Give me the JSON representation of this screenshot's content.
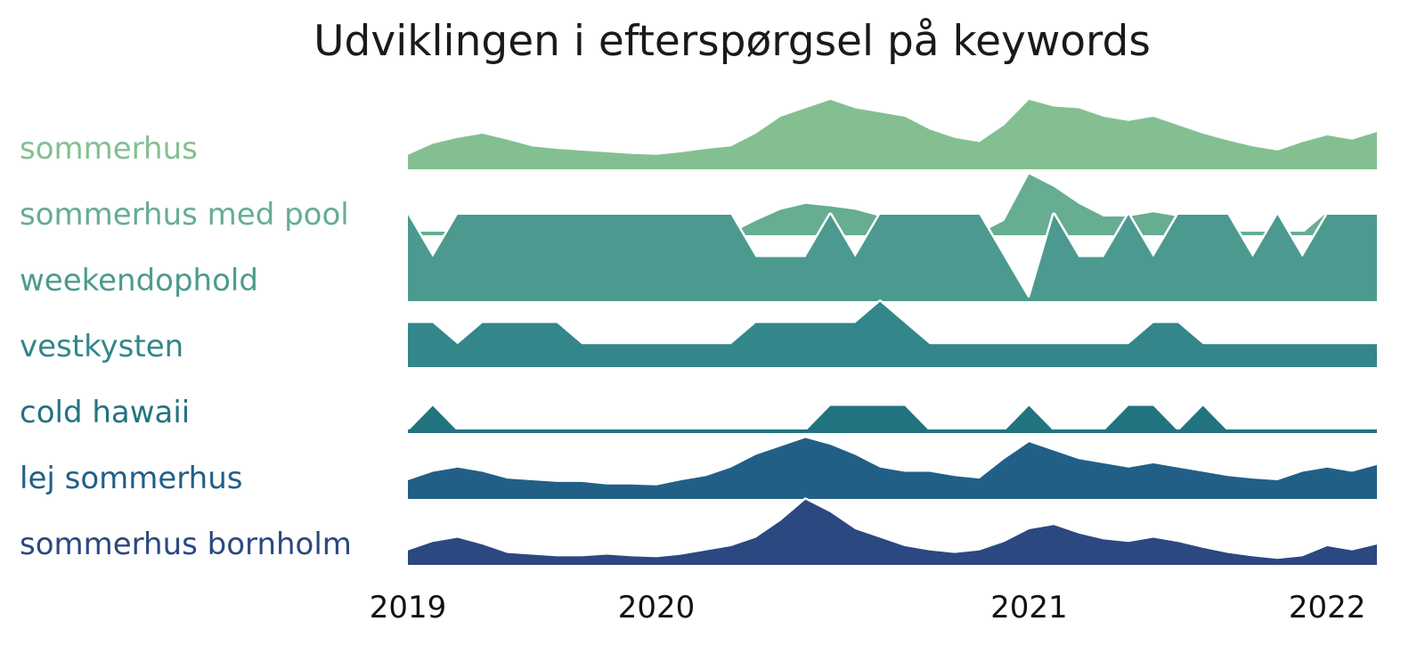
{
  "chart_data": {
    "type": "area",
    "subtype": "ridgeline",
    "title": "Udviklingen i efterspørgsel på keywords",
    "xlabel": "",
    "ylabel": "",
    "x_start": "2019-01",
    "x_end": "2022-04",
    "x_ticks": [
      {
        "label": "2019",
        "date": "2019-01"
      },
      {
        "label": "2020",
        "date": "2019-11"
      },
      {
        "label": "2021",
        "date": "2021-02"
      },
      {
        "label": "2022",
        "date": "2022-02"
      }
    ],
    "ylim": [
      0,
      100
    ],
    "grid": false,
    "legend": "none",
    "series": [
      {
        "name": "sommerhus",
        "color": "#84bf91",
        "points": [
          [
            "2019-01",
            15
          ],
          [
            "2019-02",
            28
          ],
          [
            "2019-03",
            35
          ],
          [
            "2019-04",
            40
          ],
          [
            "2019-05",
            33
          ],
          [
            "2019-06",
            25
          ],
          [
            "2019-07",
            22
          ],
          [
            "2019-08",
            20
          ],
          [
            "2019-09",
            18
          ],
          [
            "2019-10",
            16
          ],
          [
            "2019-11",
            15
          ],
          [
            "2019-12",
            18
          ],
          [
            "2020-01",
            22
          ],
          [
            "2020-02",
            25
          ],
          [
            "2020-03",
            40
          ],
          [
            "2020-04",
            60
          ],
          [
            "2020-05",
            70
          ],
          [
            "2020-06",
            80
          ],
          [
            "2020-07",
            70
          ],
          [
            "2020-08",
            65
          ],
          [
            "2020-09",
            60
          ],
          [
            "2020-10",
            45
          ],
          [
            "2020-11",
            35
          ],
          [
            "2020-12",
            30
          ],
          [
            "2021-01",
            50
          ],
          [
            "2021-02",
            80
          ],
          [
            "2021-03",
            72
          ],
          [
            "2021-04",
            70
          ],
          [
            "2021-05",
            60
          ],
          [
            "2021-06",
            55
          ],
          [
            "2021-07",
            60
          ],
          [
            "2021-08",
            50
          ],
          [
            "2021-09",
            40
          ],
          [
            "2021-10",
            32
          ],
          [
            "2021-11",
            25
          ],
          [
            "2021-12",
            20
          ],
          [
            "2022-01",
            30
          ],
          [
            "2022-02",
            38
          ],
          [
            "2022-03",
            33
          ],
          [
            "2022-04",
            42
          ]
        ]
      },
      {
        "name": "sommerhus med pool",
        "color": "#66ad91",
        "points": [
          [
            "2019-01",
            0
          ],
          [
            "2019-02",
            2
          ],
          [
            "2019-03",
            0
          ],
          [
            "2019-04",
            3
          ],
          [
            "2019-05",
            0
          ],
          [
            "2019-06",
            2
          ],
          [
            "2019-07",
            0
          ],
          [
            "2019-08",
            0
          ],
          [
            "2019-09",
            0
          ],
          [
            "2019-10",
            0
          ],
          [
            "2019-11",
            0
          ],
          [
            "2019-12",
            0
          ],
          [
            "2020-01",
            0
          ],
          [
            "2020-02",
            0
          ],
          [
            "2020-03",
            15
          ],
          [
            "2020-04",
            28
          ],
          [
            "2020-05",
            35
          ],
          [
            "2020-06",
            32
          ],
          [
            "2020-07",
            28
          ],
          [
            "2020-08",
            20
          ],
          [
            "2020-09",
            0
          ],
          [
            "2020-10",
            0
          ],
          [
            "2020-11",
            0
          ],
          [
            "2020-12",
            0
          ],
          [
            "2021-01",
            15
          ],
          [
            "2021-02",
            70
          ],
          [
            "2021-03",
            55
          ],
          [
            "2021-04",
            35
          ],
          [
            "2021-05",
            20
          ],
          [
            "2021-06",
            20
          ],
          [
            "2021-07",
            25
          ],
          [
            "2021-08",
            20
          ],
          [
            "2021-09",
            0
          ],
          [
            "2021-10",
            0
          ],
          [
            "2021-11",
            0
          ],
          [
            "2021-12",
            0
          ],
          [
            "2022-01",
            0
          ],
          [
            "2022-02",
            25
          ],
          [
            "2022-03",
            20
          ],
          [
            "2022-04",
            0
          ]
        ]
      },
      {
        "name": "weekendophold",
        "color": "#4c9a8f",
        "points": [
          [
            "2019-01",
            100
          ],
          [
            "2019-02",
            50
          ],
          [
            "2019-03",
            100
          ],
          [
            "2019-04",
            100
          ],
          [
            "2019-05",
            100
          ],
          [
            "2019-06",
            100
          ],
          [
            "2019-07",
            100
          ],
          [
            "2019-08",
            100
          ],
          [
            "2019-09",
            100
          ],
          [
            "2019-10",
            100
          ],
          [
            "2019-11",
            100
          ],
          [
            "2019-12",
            100
          ],
          [
            "2020-01",
            100
          ],
          [
            "2020-02",
            100
          ],
          [
            "2020-03",
            50
          ],
          [
            "2020-04",
            50
          ],
          [
            "2020-05",
            50
          ],
          [
            "2020-06",
            100
          ],
          [
            "2020-07",
            50
          ],
          [
            "2020-08",
            100
          ],
          [
            "2020-09",
            100
          ],
          [
            "2020-10",
            100
          ],
          [
            "2020-11",
            100
          ],
          [
            "2020-12",
            100
          ],
          [
            "2021-01",
            50
          ],
          [
            "2021-02",
            0
          ],
          [
            "2021-03",
            100
          ],
          [
            "2021-04",
            50
          ],
          [
            "2021-05",
            50
          ],
          [
            "2021-06",
            100
          ],
          [
            "2021-07",
            50
          ],
          [
            "2021-08",
            100
          ],
          [
            "2021-09",
            100
          ],
          [
            "2021-10",
            100
          ],
          [
            "2021-11",
            50
          ],
          [
            "2021-12",
            100
          ],
          [
            "2022-01",
            50
          ],
          [
            "2022-02",
            100
          ],
          [
            "2022-03",
            100
          ],
          [
            "2022-04",
            100
          ]
        ]
      },
      {
        "name": "vestkysten",
        "color": "#33868a",
        "points": [
          [
            "2019-01",
            50
          ],
          [
            "2019-02",
            50
          ],
          [
            "2019-03",
            25
          ],
          [
            "2019-04",
            50
          ],
          [
            "2019-05",
            50
          ],
          [
            "2019-06",
            50
          ],
          [
            "2019-07",
            50
          ],
          [
            "2019-08",
            25
          ],
          [
            "2019-09",
            25
          ],
          [
            "2019-10",
            25
          ],
          [
            "2019-11",
            25
          ],
          [
            "2019-12",
            25
          ],
          [
            "2020-01",
            25
          ],
          [
            "2020-02",
            25
          ],
          [
            "2020-03",
            50
          ],
          [
            "2020-04",
            50
          ],
          [
            "2020-05",
            50
          ],
          [
            "2020-06",
            50
          ],
          [
            "2020-07",
            50
          ],
          [
            "2020-08",
            75
          ],
          [
            "2020-09",
            50
          ],
          [
            "2020-10",
            25
          ],
          [
            "2020-11",
            25
          ],
          [
            "2020-12",
            25
          ],
          [
            "2021-01",
            25
          ],
          [
            "2021-02",
            25
          ],
          [
            "2021-03",
            25
          ],
          [
            "2021-04",
            25
          ],
          [
            "2021-05",
            25
          ],
          [
            "2021-06",
            25
          ],
          [
            "2021-07",
            50
          ],
          [
            "2021-08",
            50
          ],
          [
            "2021-09",
            25
          ],
          [
            "2021-10",
            25
          ],
          [
            "2021-11",
            25
          ],
          [
            "2021-12",
            25
          ],
          [
            "2022-01",
            25
          ],
          [
            "2022-02",
            25
          ],
          [
            "2022-03",
            25
          ],
          [
            "2022-04",
            25
          ]
        ]
      },
      {
        "name": "cold hawaii",
        "color": "#227380",
        "points": [
          [
            "2019-01",
            0
          ],
          [
            "2019-02",
            30
          ],
          [
            "2019-03",
            0
          ],
          [
            "2019-04",
            0
          ],
          [
            "2019-05",
            0
          ],
          [
            "2019-06",
            0
          ],
          [
            "2019-07",
            0
          ],
          [
            "2019-08",
            0
          ],
          [
            "2019-09",
            0
          ],
          [
            "2019-10",
            0
          ],
          [
            "2019-11",
            0
          ],
          [
            "2019-12",
            0
          ],
          [
            "2020-01",
            0
          ],
          [
            "2020-02",
            0
          ],
          [
            "2020-03",
            0
          ],
          [
            "2020-04",
            0
          ],
          [
            "2020-05",
            0
          ],
          [
            "2020-06",
            30
          ],
          [
            "2020-07",
            30
          ],
          [
            "2020-08",
            30
          ],
          [
            "2020-09",
            30
          ],
          [
            "2020-10",
            0
          ],
          [
            "2020-11",
            0
          ],
          [
            "2020-12",
            0
          ],
          [
            "2021-01",
            0
          ],
          [
            "2021-02",
            30
          ],
          [
            "2021-03",
            0
          ],
          [
            "2021-04",
            0
          ],
          [
            "2021-05",
            0
          ],
          [
            "2021-06",
            30
          ],
          [
            "2021-07",
            30
          ],
          [
            "2021-08",
            0
          ],
          [
            "2021-09",
            30
          ],
          [
            "2021-10",
            0
          ],
          [
            "2021-11",
            0
          ],
          [
            "2021-12",
            0
          ],
          [
            "2022-01",
            0
          ],
          [
            "2022-02",
            0
          ],
          [
            "2022-03",
            0
          ],
          [
            "2022-04",
            0
          ]
        ]
      },
      {
        "name": "lej sommerhus",
        "color": "#225f87",
        "points": [
          [
            "2019-01",
            20
          ],
          [
            "2019-02",
            30
          ],
          [
            "2019-03",
            35
          ],
          [
            "2019-04",
            30
          ],
          [
            "2019-05",
            22
          ],
          [
            "2019-06",
            20
          ],
          [
            "2019-07",
            18
          ],
          [
            "2019-08",
            18
          ],
          [
            "2019-09",
            15
          ],
          [
            "2019-10",
            15
          ],
          [
            "2019-11",
            14
          ],
          [
            "2019-12",
            20
          ],
          [
            "2020-01",
            25
          ],
          [
            "2020-02",
            35
          ],
          [
            "2020-03",
            50
          ],
          [
            "2020-04",
            60
          ],
          [
            "2020-05",
            70
          ],
          [
            "2020-06",
            62
          ],
          [
            "2020-07",
            50
          ],
          [
            "2020-08",
            35
          ],
          [
            "2020-09",
            30
          ],
          [
            "2020-10",
            30
          ],
          [
            "2020-11",
            25
          ],
          [
            "2020-12",
            22
          ],
          [
            "2021-01",
            45
          ],
          [
            "2021-02",
            65
          ],
          [
            "2021-03",
            55
          ],
          [
            "2021-04",
            45
          ],
          [
            "2021-05",
            40
          ],
          [
            "2021-06",
            35
          ],
          [
            "2021-07",
            40
          ],
          [
            "2021-08",
            35
          ],
          [
            "2021-09",
            30
          ],
          [
            "2021-10",
            25
          ],
          [
            "2021-11",
            22
          ],
          [
            "2021-12",
            20
          ],
          [
            "2022-01",
            30
          ],
          [
            "2022-02",
            35
          ],
          [
            "2022-03",
            30
          ],
          [
            "2022-04",
            38
          ]
        ]
      },
      {
        "name": "sommerhus bornholm",
        "color": "#2b4881",
        "points": [
          [
            "2019-01",
            15
          ],
          [
            "2019-02",
            25
          ],
          [
            "2019-03",
            30
          ],
          [
            "2019-04",
            22
          ],
          [
            "2019-05",
            12
          ],
          [
            "2019-06",
            10
          ],
          [
            "2019-07",
            8
          ],
          [
            "2019-08",
            8
          ],
          [
            "2019-09",
            10
          ],
          [
            "2019-10",
            8
          ],
          [
            "2019-11",
            7
          ],
          [
            "2019-12",
            10
          ],
          [
            "2020-01",
            15
          ],
          [
            "2020-02",
            20
          ],
          [
            "2020-03",
            30
          ],
          [
            "2020-04",
            50
          ],
          [
            "2020-05",
            75
          ],
          [
            "2020-06",
            60
          ],
          [
            "2020-07",
            40
          ],
          [
            "2020-08",
            30
          ],
          [
            "2020-09",
            20
          ],
          [
            "2020-10",
            15
          ],
          [
            "2020-11",
            12
          ],
          [
            "2020-12",
            15
          ],
          [
            "2021-01",
            25
          ],
          [
            "2021-02",
            40
          ],
          [
            "2021-03",
            45
          ],
          [
            "2021-04",
            35
          ],
          [
            "2021-05",
            28
          ],
          [
            "2021-06",
            25
          ],
          [
            "2021-07",
            30
          ],
          [
            "2021-08",
            25
          ],
          [
            "2021-09",
            18
          ],
          [
            "2021-10",
            12
          ],
          [
            "2021-11",
            8
          ],
          [
            "2021-12",
            5
          ],
          [
            "2022-01",
            8
          ],
          [
            "2022-02",
            20
          ],
          [
            "2022-03",
            15
          ],
          [
            "2022-04",
            22
          ]
        ]
      }
    ]
  }
}
